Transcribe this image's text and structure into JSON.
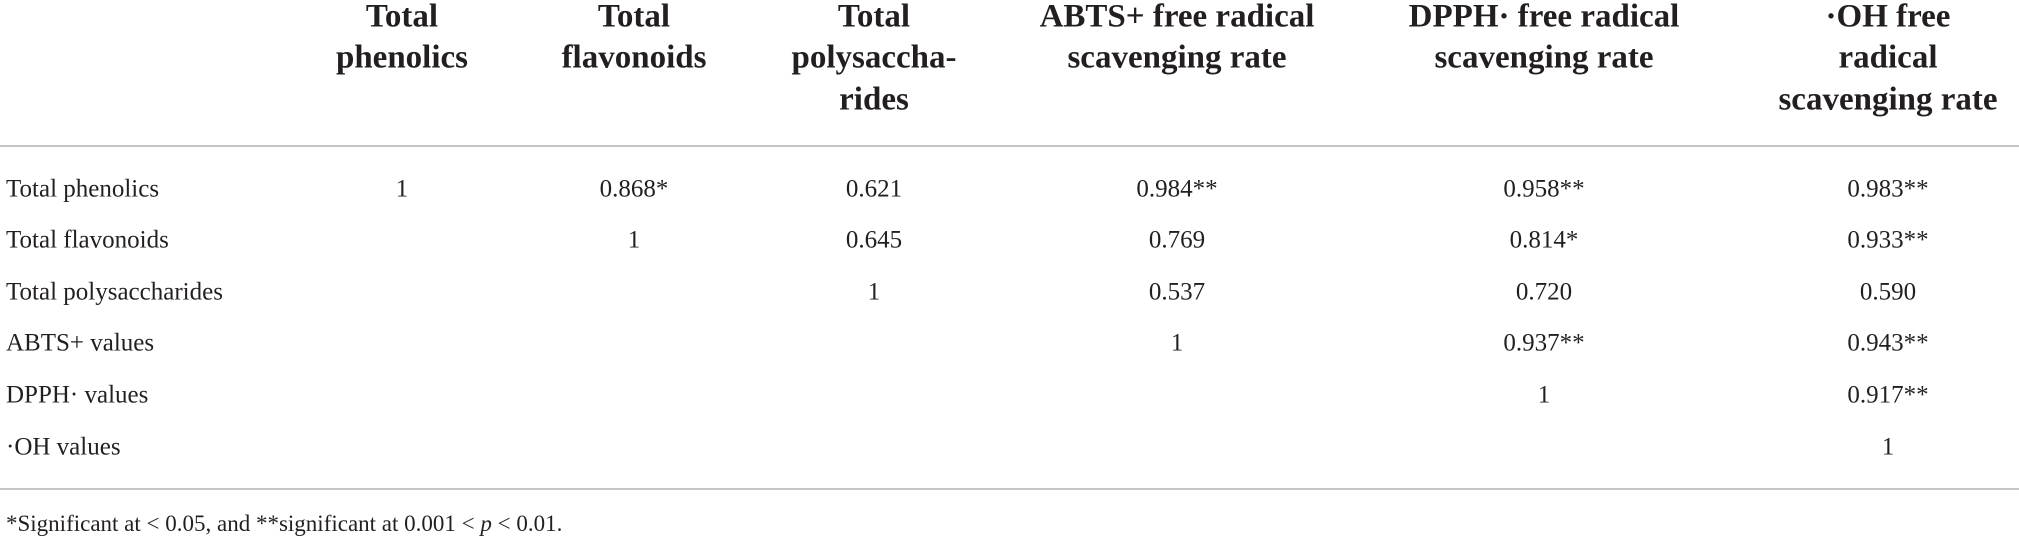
{
  "table": {
    "header": [
      [
        "Total",
        "phenolics"
      ],
      [
        "Total",
        "flavonoids"
      ],
      [
        "Total",
        "polysaccha-",
        "rides"
      ],
      [
        "ABTS+ free radical",
        "scavenging rate"
      ],
      [
        "DPPH· free radical",
        "scavenging rate"
      ],
      [
        "·OH free",
        "radical",
        "scavenging rate"
      ]
    ],
    "rows": [
      {
        "label": "Total phenolics",
        "cells": [
          1,
          "0.868*",
          "0.621",
          "0.984**",
          "0.958**",
          "0.983**"
        ]
      },
      {
        "label": "Total flavonoids",
        "cells": [
          null,
          1,
          "0.645",
          "0.769",
          "0.814*",
          "0.933**"
        ]
      },
      {
        "label": "Total polysaccharides",
        "cells": [
          null,
          null,
          1,
          "0.537",
          "0.720",
          "0.590"
        ]
      },
      {
        "label": "ABTS+ values",
        "cells": [
          null,
          null,
          null,
          1,
          "0.937**",
          "0.943**"
        ]
      },
      {
        "label": "DPPH· values",
        "cells": [
          null,
          null,
          null,
          null,
          1,
          "0.917**"
        ]
      },
      {
        "label": "·OH values",
        "cells": [
          null,
          null,
          null,
          null,
          null,
          1
        ]
      }
    ],
    "footnote": [
      "*Significant at < 0.05, and **significant at 0.001 < ",
      "p",
      " < 0.01."
    ]
  }
}
